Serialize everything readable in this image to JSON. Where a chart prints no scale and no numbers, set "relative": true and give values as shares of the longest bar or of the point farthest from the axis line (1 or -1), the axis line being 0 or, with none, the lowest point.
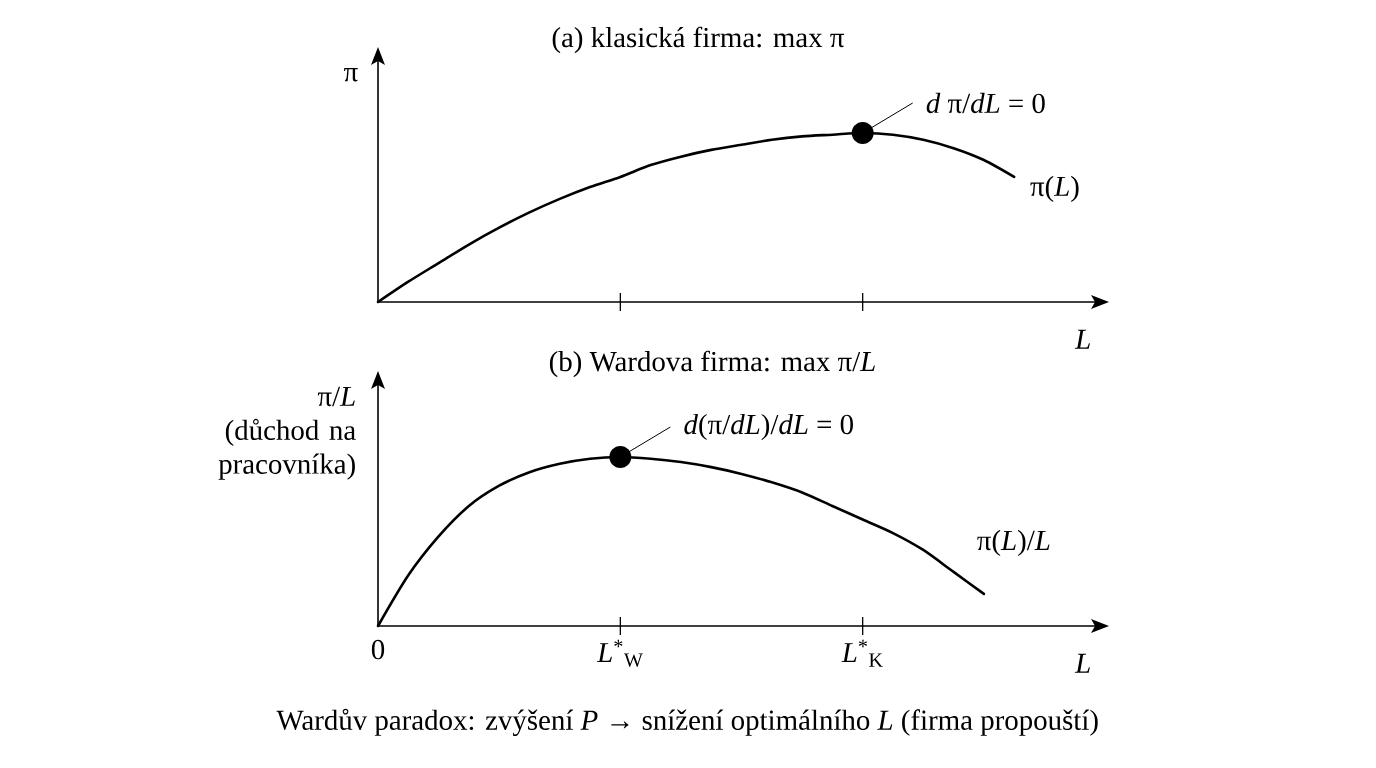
{
  "chart_data": [
    {
      "type": "line",
      "title": "(a) klasická firma: max π",
      "xlabel": "*L*",
      "ylabel": "π",
      "relative": true,
      "categories": [
        "0",
        null,
        null,
        null,
        null,
        null,
        null,
        null,
        "*L*$^{*}$$_{W}$",
        null,
        null,
        null,
        null,
        null,
        null,
        null,
        "*L*$^{*}$$_{K}$",
        null,
        null,
        null,
        null,
        null,
        null,
        null,
        null
      ],
      "tick_labels": false,
      "marker": "none",
      "line_style": "solid",
      "series": [
        {
          "name": "π(*L*)",
          "color": "#000000",
          "values": [
            0,
            0.12,
            0.23,
            0.34,
            0.44,
            0.53,
            0.61,
            0.68,
            0.74,
            0.81,
            0.86,
            0.9,
            0.93,
            0.96,
            0.98,
            0.99,
            1,
            0.99,
            0.96,
            0.91,
            0.84,
            0.74,
            null,
            null,
            null
          ]
        }
      ],
      "annotations": [
        {
          "text": "*d* π/*dL* = 0",
          "x": "*L*$^{*}$$_{K}$",
          "y": 1
        }
      ]
    },
    {
      "type": "line",
      "title": "(b) Wardova firma: max π/*L*",
      "xlabel": "*L*",
      "ylabel": "π/*L* (důchod na pracovníka)",
      "relative": true,
      "categories": [
        "0",
        null,
        null,
        null,
        null,
        null,
        null,
        null,
        "*L*$^{*}$$_{W}$",
        null,
        null,
        null,
        null,
        null,
        null,
        null,
        "*L*$^{*}$$_{K}$",
        null,
        null,
        null,
        null,
        null,
        null,
        null,
        null
      ],
      "tick_labels": "x",
      "marker": "none",
      "line_style": "solid",
      "series": [
        {
          "name": "π(*L*)/*L*",
          "color": "#000000",
          "values": [
            0,
            0.3,
            0.53,
            0.71,
            0.83,
            0.91,
            0.96,
            0.99,
            1,
            0.99,
            0.97,
            0.94,
            0.9,
            0.85,
            0.79,
            0.71,
            0.63,
            0.55,
            0.45,
            0.32,
            0.19,
            null,
            null,
            null,
            null
          ]
        }
      ],
      "annotations": [
        {
          "text": "*d*(π/*dL*)/*dL* = 0",
          "x": "*L*$^{*}$$_{W}$",
          "y": 1
        },
        "Wardův paradox: zvýšení *P* → snížení optimálního *L* (firma propouští)"
      ]
    }
  ]
}
